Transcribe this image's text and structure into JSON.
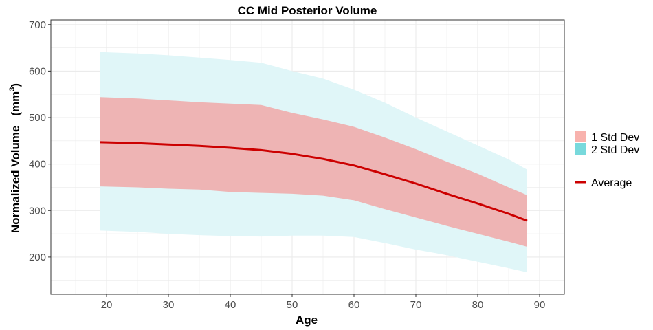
{
  "chart_data": {
    "type": "area",
    "title": "CC Mid Posterior Volume",
    "xlabel": "Age",
    "ylabel": "Normalized Volume",
    "ylabel_unit_base": "mm",
    "ylabel_unit_exp": "3",
    "xlim": [
      11,
      94
    ],
    "ylim": [
      120,
      710
    ],
    "x_ticks": [
      20,
      30,
      40,
      50,
      60,
      70,
      80,
      90
    ],
    "y_ticks": [
      200,
      300,
      400,
      500,
      600,
      700
    ],
    "grid": true,
    "legend_position": "right",
    "colors": {
      "sd1_fill": "#eeb4b4",
      "sd2_fill": "#e0f6f8",
      "sd1_key": "#f8b2ad",
      "sd2_key": "#78d9dc",
      "average": "#cc0000",
      "grid": "#ebebeb",
      "panel_border": "#333333"
    },
    "x": [
      19,
      25,
      30,
      35,
      40,
      45,
      50,
      55,
      60,
      65,
      70,
      75,
      80,
      85,
      88
    ],
    "series": [
      {
        "name": "Average",
        "values": [
          447,
          445,
          442,
          439,
          435,
          430,
          422,
          411,
          397,
          378,
          358,
          336,
          315,
          293,
          278
        ]
      },
      {
        "name": "1 Std Dev",
        "lower": [
          352,
          350,
          347,
          345,
          340,
          338,
          336,
          332,
          322,
          303,
          285,
          267,
          250,
          233,
          222
        ],
        "upper": [
          544,
          541,
          537,
          533,
          530,
          527,
          510,
          496,
          480,
          457,
          432,
          405,
          379,
          350,
          333
        ]
      },
      {
        "name": "2 Std Dev",
        "lower": [
          257,
          254,
          250,
          247,
          245,
          244,
          246,
          246,
          243,
          230,
          216,
          204,
          190,
          176,
          167
        ],
        "upper": [
          641,
          638,
          634,
          629,
          624,
          618,
          600,
          584,
          560,
          532,
          500,
          470,
          440,
          410,
          388
        ]
      }
    ],
    "legend": {
      "sd1_label": "1 Std Dev",
      "sd2_label": "2 Std Dev",
      "average_label": "Average"
    }
  }
}
